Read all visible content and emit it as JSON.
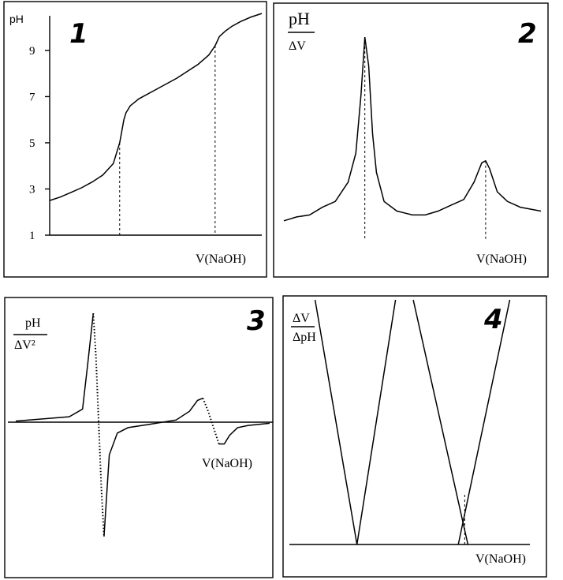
{
  "chart_data": [
    {
      "type": "line",
      "panel_number": "1",
      "ylabel": "pH",
      "xlabel": "V(NaOH)",
      "yticks": [
        "1",
        "3",
        "5",
        "7",
        "9"
      ],
      "ylim": [
        1,
        10.5
      ],
      "xlim": [
        0,
        10
      ],
      "x": [
        0,
        0.5,
        1,
        1.5,
        2,
        2.5,
        3,
        3.3,
        3.5,
        3.6,
        3.8,
        4.2,
        5,
        6,
        7,
        7.5,
        7.8,
        8,
        8.3,
        8.6,
        9,
        9.5,
        10
      ],
      "y": [
        2.5,
        2.65,
        2.85,
        3.05,
        3.3,
        3.6,
        4.1,
        5,
        6,
        6.3,
        6.6,
        6.9,
        7.3,
        7.8,
        8.4,
        8.8,
        9.2,
        9.6,
        9.85,
        10.05,
        10.25,
        10.45,
        10.6
      ],
      "equivalence_markers_x": [
        3.3,
        7.8
      ],
      "equivalence_markers_y": [
        5,
        9.2
      ]
    },
    {
      "type": "line",
      "panel_number": "2",
      "ylabel_top": "pH",
      "ylabel_bottom": "ΔV",
      "xlabel": "V(NaOH)",
      "x": [
        0,
        0.5,
        1,
        1.5,
        2,
        2.5,
        2.8,
        3.0,
        3.15,
        3.3,
        3.45,
        3.6,
        3.9,
        4.4,
        5,
        5.5,
        6,
        6.5,
        7,
        7.4,
        7.7,
        7.85,
        8.0,
        8.3,
        8.7,
        9.2,
        10
      ],
      "y": [
        0.05,
        0.07,
        0.08,
        0.12,
        0.15,
        0.25,
        0.4,
        0.7,
        1.0,
        0.85,
        0.5,
        0.3,
        0.15,
        0.1,
        0.08,
        0.08,
        0.1,
        0.13,
        0.16,
        0.25,
        0.35,
        0.36,
        0.32,
        0.2,
        0.15,
        0.12,
        0.1
      ],
      "peaks_x": [
        3.15,
        7.85
      ]
    },
    {
      "type": "line",
      "panel_number": "3",
      "ylabel_top": "pH",
      "ylabel_bottom": "ΔV²",
      "xlabel": "V(NaOH)",
      "x": [
        0,
        1,
        2,
        2.5,
        2.7,
        2.9,
        3.0,
        3.1,
        3.2,
        3.3,
        3.5,
        3.8,
        4.2,
        5,
        6,
        6.5,
        6.8,
        7.0,
        7.2,
        7.4,
        7.6,
        7.8,
        8.0,
        8.3,
        8.7,
        9.5
      ],
      "y": [
        0.01,
        0.03,
        0.05,
        0.12,
        0.55,
        1.0,
        0.6,
        0,
        -0.6,
        -1.05,
        -0.3,
        -0.1,
        -0.05,
        -0.02,
        0.02,
        0.1,
        0.2,
        0.22,
        0.1,
        -0.05,
        -0.2,
        -0.2,
        -0.12,
        -0.05,
        -0.03,
        -0.01
      ]
    },
    {
      "type": "line",
      "panel_number": "4",
      "ylabel_top": "ΔV",
      "ylabel_bottom": "ΔpH",
      "xlabel": "V(NaOH)",
      "series": [
        {
          "x": [
            1.6,
            4.2,
            6.6
          ],
          "y": [
            1.0,
            0,
            1.0
          ]
        },
        {
          "x": [
            7.7,
            11.1
          ],
          "y": [
            1.0,
            0
          ]
        },
        {
          "x": [
            13.7,
            10.5
          ],
          "y": [
            1.0,
            0
          ]
        }
      ],
      "intersection_x": 10.9,
      "xlim": [
        0,
        15
      ]
    }
  ]
}
